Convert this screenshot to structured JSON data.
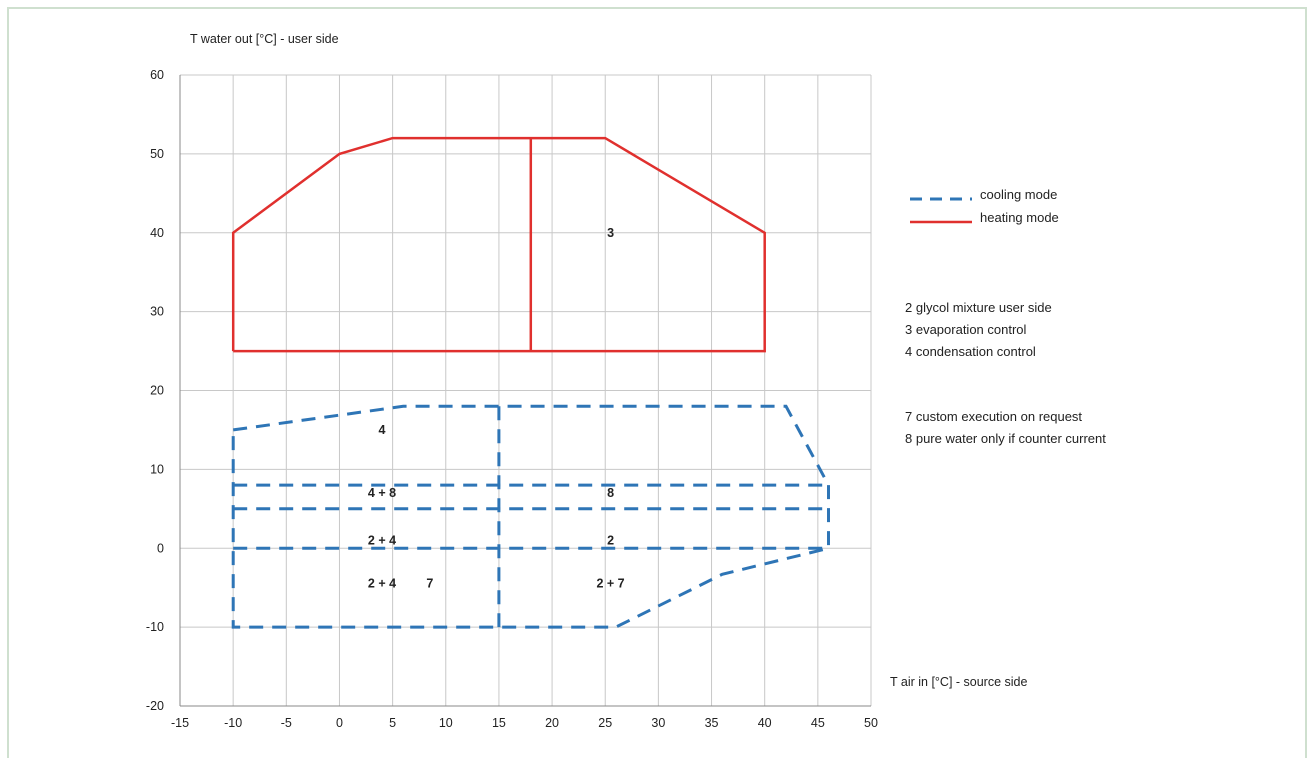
{
  "chart_data": {
    "type": "line",
    "ylabel": "T water out [°C] - user side",
    "xlabel": "T air in [°C] - source side",
    "xlim": [
      -15,
      50
    ],
    "ylim": [
      -20,
      60
    ],
    "x_ticks": [
      -15,
      -10,
      -5,
      0,
      5,
      10,
      15,
      20,
      25,
      30,
      35,
      40,
      45,
      50
    ],
    "y_ticks": [
      -20,
      -10,
      0,
      10,
      20,
      30,
      40,
      50,
      60
    ],
    "grid": true,
    "legend_position": "right",
    "series": [
      {
        "name": "cooling mode",
        "style": "dashed",
        "color": "#2e75b6",
        "paths": [
          [
            [
              -10,
              15
            ],
            [
              6,
              18
            ],
            [
              42,
              18
            ],
            [
              46,
              8
            ],
            [
              46,
              0
            ],
            [
              36,
              -3.3
            ],
            [
              26,
              -10
            ],
            [
              -10,
              -10
            ],
            [
              -10,
              15
            ]
          ],
          [
            [
              -10,
              8
            ],
            [
              46,
              8
            ]
          ],
          [
            [
              -10,
              5
            ],
            [
              46,
              5
            ]
          ],
          [
            [
              -10,
              0
            ],
            [
              46,
              0
            ]
          ],
          [
            [
              15,
              18
            ],
            [
              15,
              -10
            ]
          ]
        ]
      },
      {
        "name": "heating mode",
        "style": "solid",
        "color": "#e0302e",
        "paths": [
          [
            [
              -10,
              25
            ],
            [
              -10,
              40
            ],
            [
              0,
              50
            ],
            [
              5,
              52
            ],
            [
              25,
              52
            ],
            [
              40,
              40
            ],
            [
              40,
              25
            ],
            [
              -10,
              25
            ]
          ],
          [
            [
              18,
              52
            ],
            [
              18,
              25
            ]
          ]
        ]
      }
    ],
    "annotations": [
      {
        "text": "3",
        "x": 25.5,
        "y": 40
      },
      {
        "text": "4",
        "x": 4,
        "y": 15
      },
      {
        "text": "4 + 8",
        "x": 4,
        "y": 7
      },
      {
        "text": "8",
        "x": 25.5,
        "y": 7
      },
      {
        "text": "2 + 4",
        "x": 4,
        "y": 1
      },
      {
        "text": "2",
        "x": 25.5,
        "y": 1
      },
      {
        "text": "2 + 4",
        "x": 4,
        "y": -4.5
      },
      {
        "text": "7",
        "x": 8.5,
        "y": -4.5
      },
      {
        "text": "2 + 7",
        "x": 25.5,
        "y": -4.5
      }
    ],
    "notes": [
      "2  glycol mixture user side",
      "3  evaporation control",
      "4  condensation control",
      "7  custom execution on request",
      "8  pure water only if counter current"
    ]
  }
}
